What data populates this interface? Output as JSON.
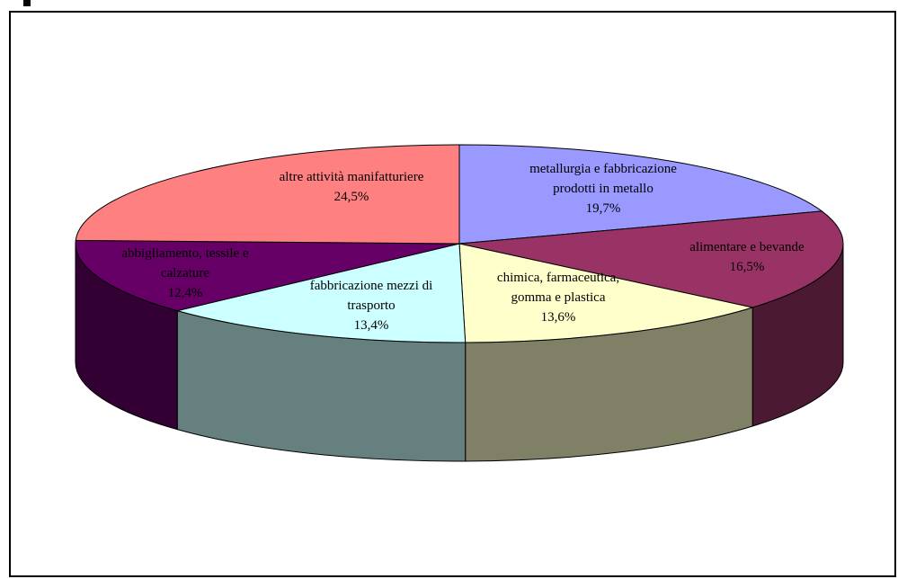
{
  "chart_data": {
    "type": "pie",
    "style": "3d",
    "slices": [
      {
        "label": "metallurgia e fabbricazione prodotti in metallo",
        "lines": [
          "metallurgia e fabbricazione",
          "prodotti in metallo"
        ],
        "value": 19.7,
        "value_label": "19,7%",
        "color": "#9999FF",
        "side_color": "#4C4C80"
      },
      {
        "label": "alimentare e bevande",
        "lines": [
          "alimentare e bevande"
        ],
        "value": 16.5,
        "value_label": "16,5%",
        "color": "#993366",
        "side_color": "#4C1933"
      },
      {
        "label": "chimica, farmaceutica, gomma e plastica",
        "lines": [
          "chimica, farmaceutica,",
          "gomma e plastica"
        ],
        "value": 13.6,
        "value_label": "13,6%",
        "color": "#FFFFCC",
        "side_color": "#808066"
      },
      {
        "label": "fabbricazione mezzi di trasporto",
        "lines": [
          "fabbricazione mezzi di",
          "trasporto"
        ],
        "value": 13.4,
        "value_label": "13,4%",
        "color": "#CCFFFF",
        "side_color": "#668080"
      },
      {
        "label": "abbigliamento, tessile e calzature",
        "lines": [
          "abbigliamento, tessile e",
          "calzature"
        ],
        "value": 12.4,
        "value_label": "12,4%",
        "color": "#660066",
        "side_color": "#330033"
      },
      {
        "label": "altre attività manifatturiere",
        "lines": [
          "altre attività manifatturiere"
        ],
        "value": 24.5,
        "value_label": "24,5%",
        "color": "#FF8080",
        "side_color": "#804040"
      }
    ]
  }
}
